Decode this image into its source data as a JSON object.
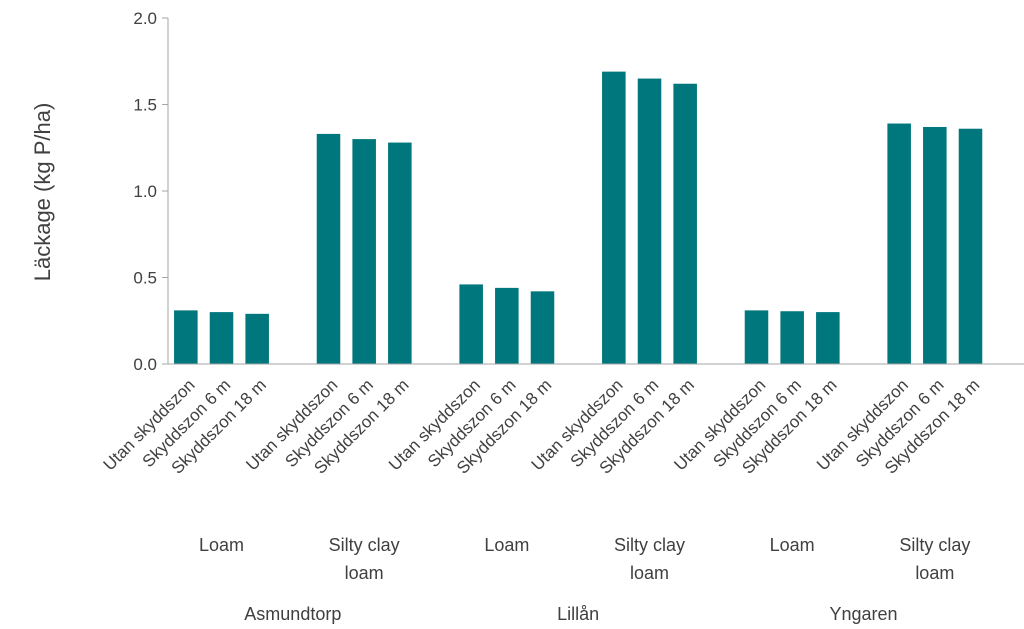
{
  "chart_data": {
    "type": "bar",
    "title": "",
    "xlabel": "",
    "ylabel": "Läckage (kg P/ha)",
    "ylim": [
      0,
      2.0
    ],
    "yticks": [
      "0.0",
      "0.5",
      "1.0",
      "1.5",
      "2.0"
    ],
    "ytick_values": [
      0,
      0.5,
      1.0,
      1.5,
      2.0
    ],
    "grid": false,
    "legend": "none",
    "bar_color": "#00777D",
    "groups": [
      {
        "site": "Asmundtorp",
        "soils": [
          {
            "soil": [
              "Loam"
            ],
            "categories": [
              "Utan skyddszon",
              "Skyddszon 6 m",
              "Skyddszon 18 m"
            ],
            "values": [
              0.31,
              0.3,
              0.29
            ]
          },
          {
            "soil": [
              "Silty clay",
              "loam"
            ],
            "categories": [
              "Utan skyddszon",
              "Skyddszon 6 m",
              "Skyddszon 18 m"
            ],
            "values": [
              1.33,
              1.3,
              1.28
            ]
          }
        ]
      },
      {
        "site": "Lillån",
        "soils": [
          {
            "soil": [
              "Loam"
            ],
            "categories": [
              "Utan skyddszon",
              "Skyddszon 6 m",
              "Skyddszon 18 m"
            ],
            "values": [
              0.46,
              0.44,
              0.42
            ]
          },
          {
            "soil": [
              "Silty clay",
              "loam"
            ],
            "categories": [
              "Utan skyddszon",
              "Skyddszon 6 m",
              "Skyddszon 18 m"
            ],
            "values": [
              1.69,
              1.65,
              1.62
            ]
          }
        ]
      },
      {
        "site": "Yngaren",
        "soils": [
          {
            "soil": [
              "Loam"
            ],
            "categories": [
              "Utan skyddszon",
              "Skyddszon 6 m",
              "Skyddszon 18 m"
            ],
            "values": [
              0.31,
              0.305,
              0.3
            ]
          },
          {
            "soil": [
              "Silty clay",
              "loam"
            ],
            "categories": [
              "Utan skyddszon",
              "Skyddszon 6 m",
              "Skyddszon 18 m"
            ],
            "values": [
              1.39,
              1.37,
              1.36
            ]
          }
        ]
      }
    ]
  }
}
